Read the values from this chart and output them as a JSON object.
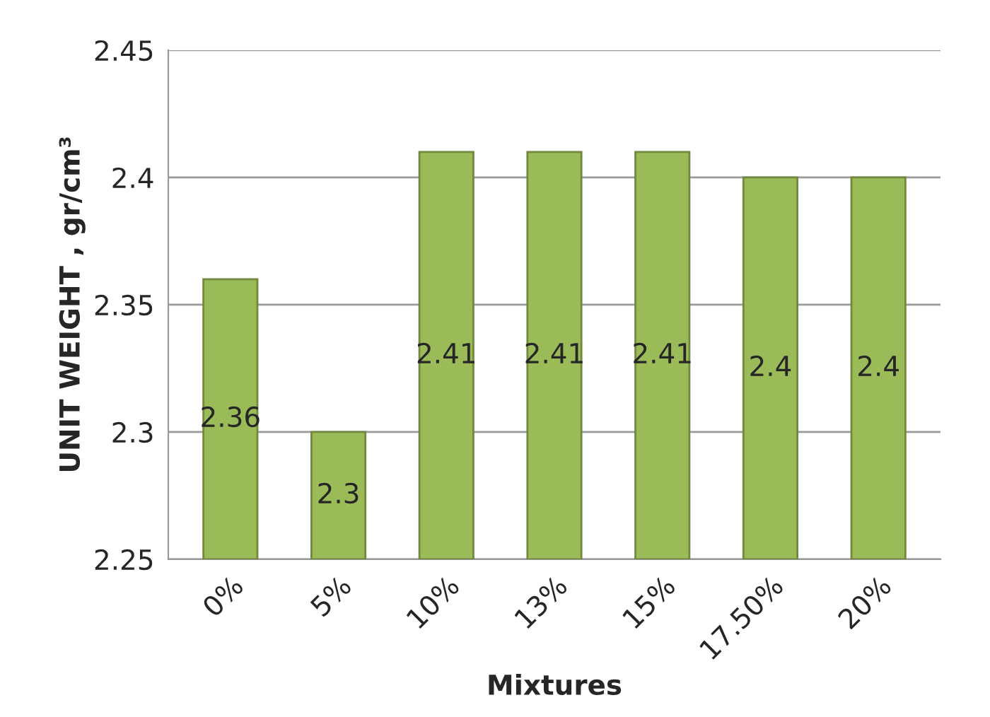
{
  "chart_data": {
    "type": "bar",
    "xlabel": "Mixtures",
    "ylabel": "UNIT WEIGHT , gr/cm³",
    "categories": [
      "0%",
      "5%",
      "10%",
      "13%",
      "15%",
      "17.50%",
      "20%"
    ],
    "values": [
      2.36,
      2.3,
      2.41,
      2.41,
      2.41,
      2.4,
      2.4
    ],
    "color": "#9bbb59",
    "ylim": [
      2.25,
      2.45
    ],
    "yticks": [
      2.25,
      2.3,
      2.35,
      2.4,
      2.45
    ],
    "grid": "y",
    "data_labels": true
  }
}
